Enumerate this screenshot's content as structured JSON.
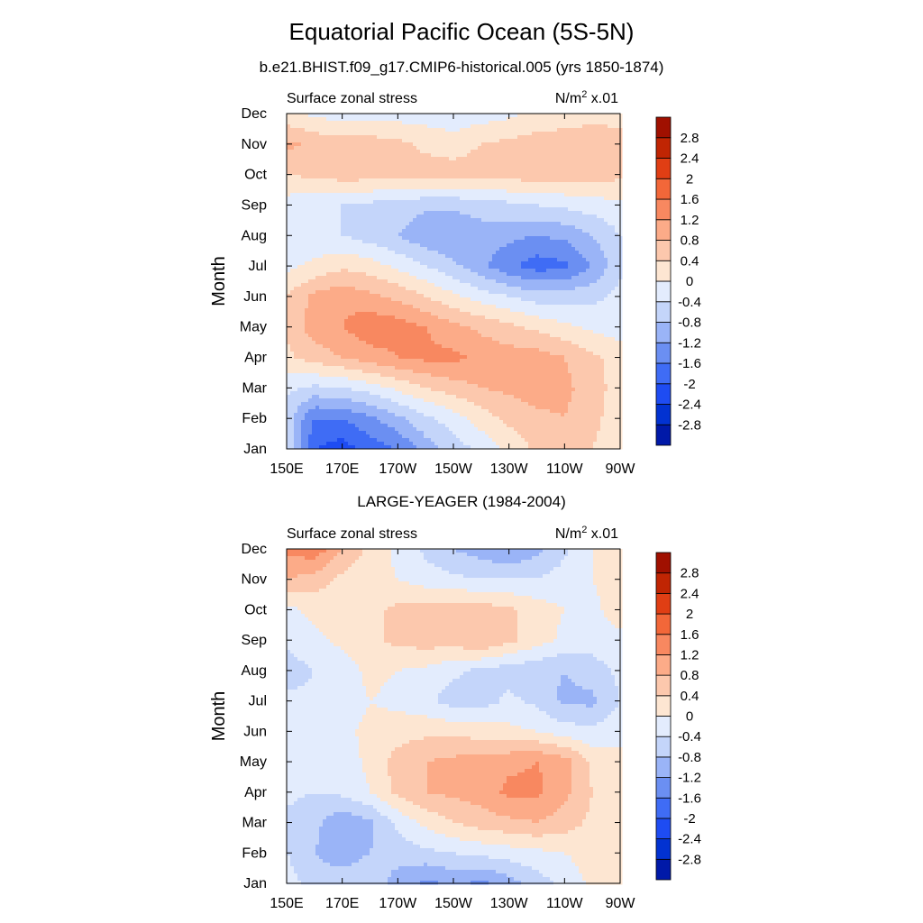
{
  "title": "Equatorial Pacific Ocean (5S-5N)",
  "colors": [
    "#000080",
    "#0019a8",
    "#0232d1",
    "#1e4cf2",
    "#3f6cf5",
    "#6b8ff2",
    "#9ab4f7",
    "#c4d5fa",
    "#e3ecfd",
    "#fde6d2",
    "#fcc8ad",
    "#fcab88",
    "#f88860",
    "#f26739",
    "#e03e14",
    "#c02503",
    "#a01000",
    "#800000"
  ],
  "levels": [
    -2.8,
    -2.4,
    -2,
    -1.6,
    -1.2,
    -0.8,
    -0.4,
    0,
    0.4,
    0.8,
    1.2,
    1.6,
    2,
    2.4,
    2.8
  ],
  "legend_labels": [
    "-2.8",
    "-2.4",
    "-2",
    "-1.6",
    "-1.2",
    "-0.8",
    "-0.4",
    "0",
    "0.4",
    "0.8",
    "1.2",
    "1.6",
    "2",
    "2.4",
    "2.8"
  ],
  "chart_data": [
    {
      "type": "heatmap",
      "title": "b.e21.BHIST.f09_g17.CMIP6-historical.005 (yrs 1850-1874)",
      "left_label": "Surface zonal stress",
      "right_label_base": "N/m",
      "right_label_sup": "2",
      "right_label_tail": " x.01",
      "ylabel": "Month",
      "xticks": [
        "150E",
        "170E",
        "170W",
        "150W",
        "130W",
        "110W",
        "90W"
      ],
      "yticks": [
        "Jan",
        "Feb",
        "Mar",
        "Apr",
        "May",
        "Jun",
        "Jul",
        "Aug",
        "Sep",
        "Oct",
        "Nov",
        "Dec"
      ],
      "grid_x": [
        "150E",
        "160E",
        "170E",
        "180",
        "170W",
        "160W",
        "150W",
        "140W",
        "130W",
        "120W",
        "110W",
        "100W",
        "90W"
      ],
      "values": [
        [
          -0.4,
          -2.0,
          -2.2,
          -1.8,
          -1.6,
          -1.0,
          -0.6,
          -0.3,
          0.1,
          0.5,
          0.6,
          0.4,
          0.2
        ],
        [
          -0.6,
          -1.6,
          -1.6,
          -1.3,
          -0.9,
          -0.5,
          -0.2,
          0.2,
          0.5,
          0.7,
          0.8,
          0.5,
          0.2
        ],
        [
          -0.3,
          -0.5,
          -0.4,
          -0.2,
          0.1,
          0.4,
          0.6,
          0.8,
          0.9,
          1.0,
          0.9,
          0.6,
          0.2
        ],
        [
          0.3,
          0.6,
          0.8,
          1.0,
          1.2,
          1.3,
          1.3,
          1.1,
          1.0,
          1.0,
          0.8,
          0.5,
          0.2
        ],
        [
          0.5,
          1.0,
          1.2,
          1.5,
          1.4,
          1.2,
          0.9,
          0.7,
          0.5,
          0.3,
          0.1,
          -0.1,
          -0.2
        ],
        [
          0.4,
          0.9,
          1.1,
          0.9,
          0.7,
          0.4,
          0.1,
          -0.2,
          -0.4,
          -0.6,
          -0.6,
          -0.5,
          -0.3
        ],
        [
          -0.1,
          0.1,
          0.3,
          0.2,
          -0.1,
          -0.4,
          -0.7,
          -1.1,
          -1.5,
          -1.8,
          -1.7,
          -1.2,
          -0.5
        ],
        [
          -0.3,
          -0.3,
          -0.4,
          -0.6,
          -0.8,
          -1.1,
          -1.2,
          -1.0,
          -1.1,
          -1.2,
          -1.1,
          -0.8,
          -0.4
        ],
        [
          -0.2,
          -0.3,
          -0.4,
          -0.5,
          -0.6,
          -0.7,
          -0.7,
          -0.6,
          -0.5,
          -0.4,
          -0.3,
          -0.2,
          -0.1
        ],
        [
          0.4,
          0.5,
          0.6,
          0.6,
          0.6,
          0.6,
          0.6,
          0.6,
          0.6,
          0.6,
          0.6,
          0.6,
          0.5
        ],
        [
          0.9,
          0.7,
          0.6,
          0.6,
          0.5,
          0.3,
          0.2,
          0.4,
          0.5,
          0.6,
          0.6,
          0.6,
          0.5
        ],
        [
          0.1,
          -0.1,
          -0.2,
          -0.2,
          -0.2,
          -0.2,
          -0.3,
          -0.2,
          -0.1,
          0.1,
          0.2,
          0.3,
          0.3
        ]
      ]
    },
    {
      "type": "heatmap",
      "title": "LARGE-YEAGER (1984-2004)",
      "left_label": "Surface zonal stress",
      "right_label_base": "N/m",
      "right_label_sup": "2",
      "right_label_tail": " x.01",
      "ylabel": "Month",
      "xticks": [
        "150E",
        "170E",
        "170W",
        "150W",
        "130W",
        "110W",
        "90W"
      ],
      "yticks": [
        "Jan",
        "Feb",
        "Mar",
        "Apr",
        "May",
        "Jun",
        "Jul",
        "Aug",
        "Sep",
        "Oct",
        "Nov",
        "Dec"
      ],
      "grid_x": [
        "150E",
        "160E",
        "170E",
        "180",
        "170W",
        "160W",
        "150W",
        "140W",
        "130W",
        "120W",
        "110W",
        "100W",
        "90W"
      ],
      "values": [
        [
          -0.2,
          -0.6,
          -0.6,
          -0.5,
          -1.0,
          -1.3,
          -1.1,
          -1.3,
          -1.0,
          -0.6,
          -0.3,
          0.1,
          0.2
        ],
        [
          -0.4,
          -0.8,
          -1.0,
          -0.8,
          -0.6,
          -0.5,
          -0.4,
          -0.3,
          -0.2,
          -0.1,
          0.0,
          0.2,
          0.3
        ],
        [
          -0.5,
          -0.7,
          -1.1,
          -0.9,
          -0.3,
          0.1,
          0.4,
          0.6,
          0.7,
          0.8,
          0.6,
          0.3,
          0.2
        ],
        [
          -0.3,
          -0.4,
          -0.3,
          0.0,
          0.5,
          0.8,
          0.9,
          1.0,
          1.3,
          1.3,
          0.9,
          0.4,
          0.2
        ],
        [
          -0.3,
          -0.3,
          -0.2,
          0.1,
          0.6,
          0.8,
          0.9,
          1.0,
          1.1,
          1.2,
          1.0,
          0.3,
          0.1
        ],
        [
          -0.2,
          -0.2,
          -0.1,
          0.1,
          0.2,
          0.3,
          0.3,
          0.2,
          0.1,
          0.0,
          -0.2,
          -0.3,
          -0.1
        ],
        [
          -0.3,
          -0.3,
          -0.2,
          0.0,
          -0.1,
          -0.3,
          -0.6,
          -0.6,
          -0.3,
          -0.5,
          -0.9,
          -0.9,
          -0.4
        ],
        [
          -0.6,
          -0.4,
          -0.2,
          0.1,
          0.0,
          -0.1,
          -0.3,
          -0.5,
          -0.6,
          -0.7,
          -0.8,
          -0.6,
          -0.3
        ],
        [
          -0.3,
          -0.1,
          0.1,
          0.3,
          0.5,
          0.6,
          0.6,
          0.8,
          0.5,
          0.2,
          -0.1,
          -0.2,
          -0.1
        ],
        [
          -0.1,
          0.1,
          0.3,
          0.3,
          0.5,
          0.6,
          0.6,
          0.6,
          0.5,
          0.2,
          0.0,
          -0.1,
          0.2
        ],
        [
          0.8,
          0.6,
          0.3,
          0.1,
          0.0,
          -0.2,
          -0.3,
          -0.4,
          -0.4,
          -0.4,
          -0.2,
          0.0,
          0.2
        ],
        [
          1.3,
          1.5,
          0.8,
          0.3,
          -0.1,
          -0.5,
          -0.8,
          -1.0,
          -1.2,
          -0.9,
          -0.5,
          0.0,
          0.2
        ]
      ]
    }
  ]
}
